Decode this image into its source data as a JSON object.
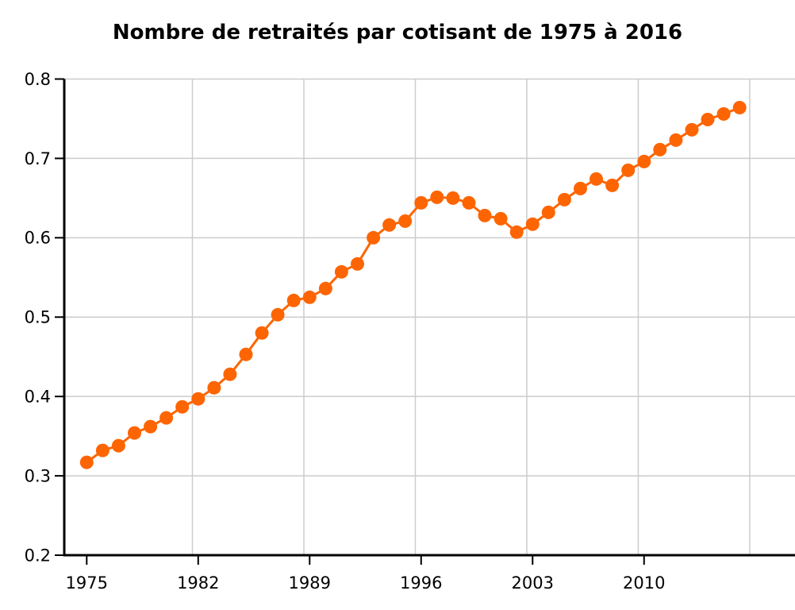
{
  "chart_data": {
    "type": "line",
    "title": "Nombre de retraités par cotisant de 1975 à 2016",
    "series_name": "Nombre de retraités par cotisant",
    "x": [
      1975,
      1976,
      1977,
      1978,
      1979,
      1980,
      1981,
      1982,
      1983,
      1984,
      1985,
      1986,
      1987,
      1988,
      1989,
      1990,
      1991,
      1992,
      1993,
      1994,
      1995,
      1996,
      1997,
      1998,
      1999,
      2000,
      2001,
      2002,
      2003,
      2004,
      2005,
      2006,
      2007,
      2008,
      2009,
      2010,
      2011,
      2012,
      2013,
      2014,
      2015,
      2016
    ],
    "values": [
      0.317,
      0.332,
      0.338,
      0.354,
      0.362,
      0.373,
      0.387,
      0.397,
      0.411,
      0.428,
      0.453,
      0.48,
      0.503,
      0.521,
      0.525,
      0.536,
      0.557,
      0.567,
      0.6,
      0.616,
      0.621,
      0.644,
      0.651,
      0.65,
      0.644,
      0.628,
      0.624,
      0.607,
      0.617,
      0.632,
      0.648,
      0.662,
      0.674,
      0.666,
      0.685,
      0.696,
      0.711,
      0.723,
      0.736,
      0.749,
      0.756,
      0.764
    ],
    "xlabel": "",
    "ylabel": "",
    "x_tick_labels": [
      "1975",
      "1982",
      "1989",
      "1996",
      "2003",
      "2010"
    ],
    "y_tick_labels": [
      "0.2",
      "0.3",
      "0.4",
      "0.5",
      "0.6",
      "0.7",
      "0.8"
    ],
    "xlim": [
      1975,
      2016
    ],
    "ylim": [
      0.2,
      0.8
    ],
    "grid": true,
    "legend_position": "none",
    "marker": "circle",
    "colors": {
      "series": "#fd6502",
      "grid": "#cccccc",
      "axis": "#000000",
      "tick_text": "#000000",
      "background": "#ffffff"
    }
  }
}
